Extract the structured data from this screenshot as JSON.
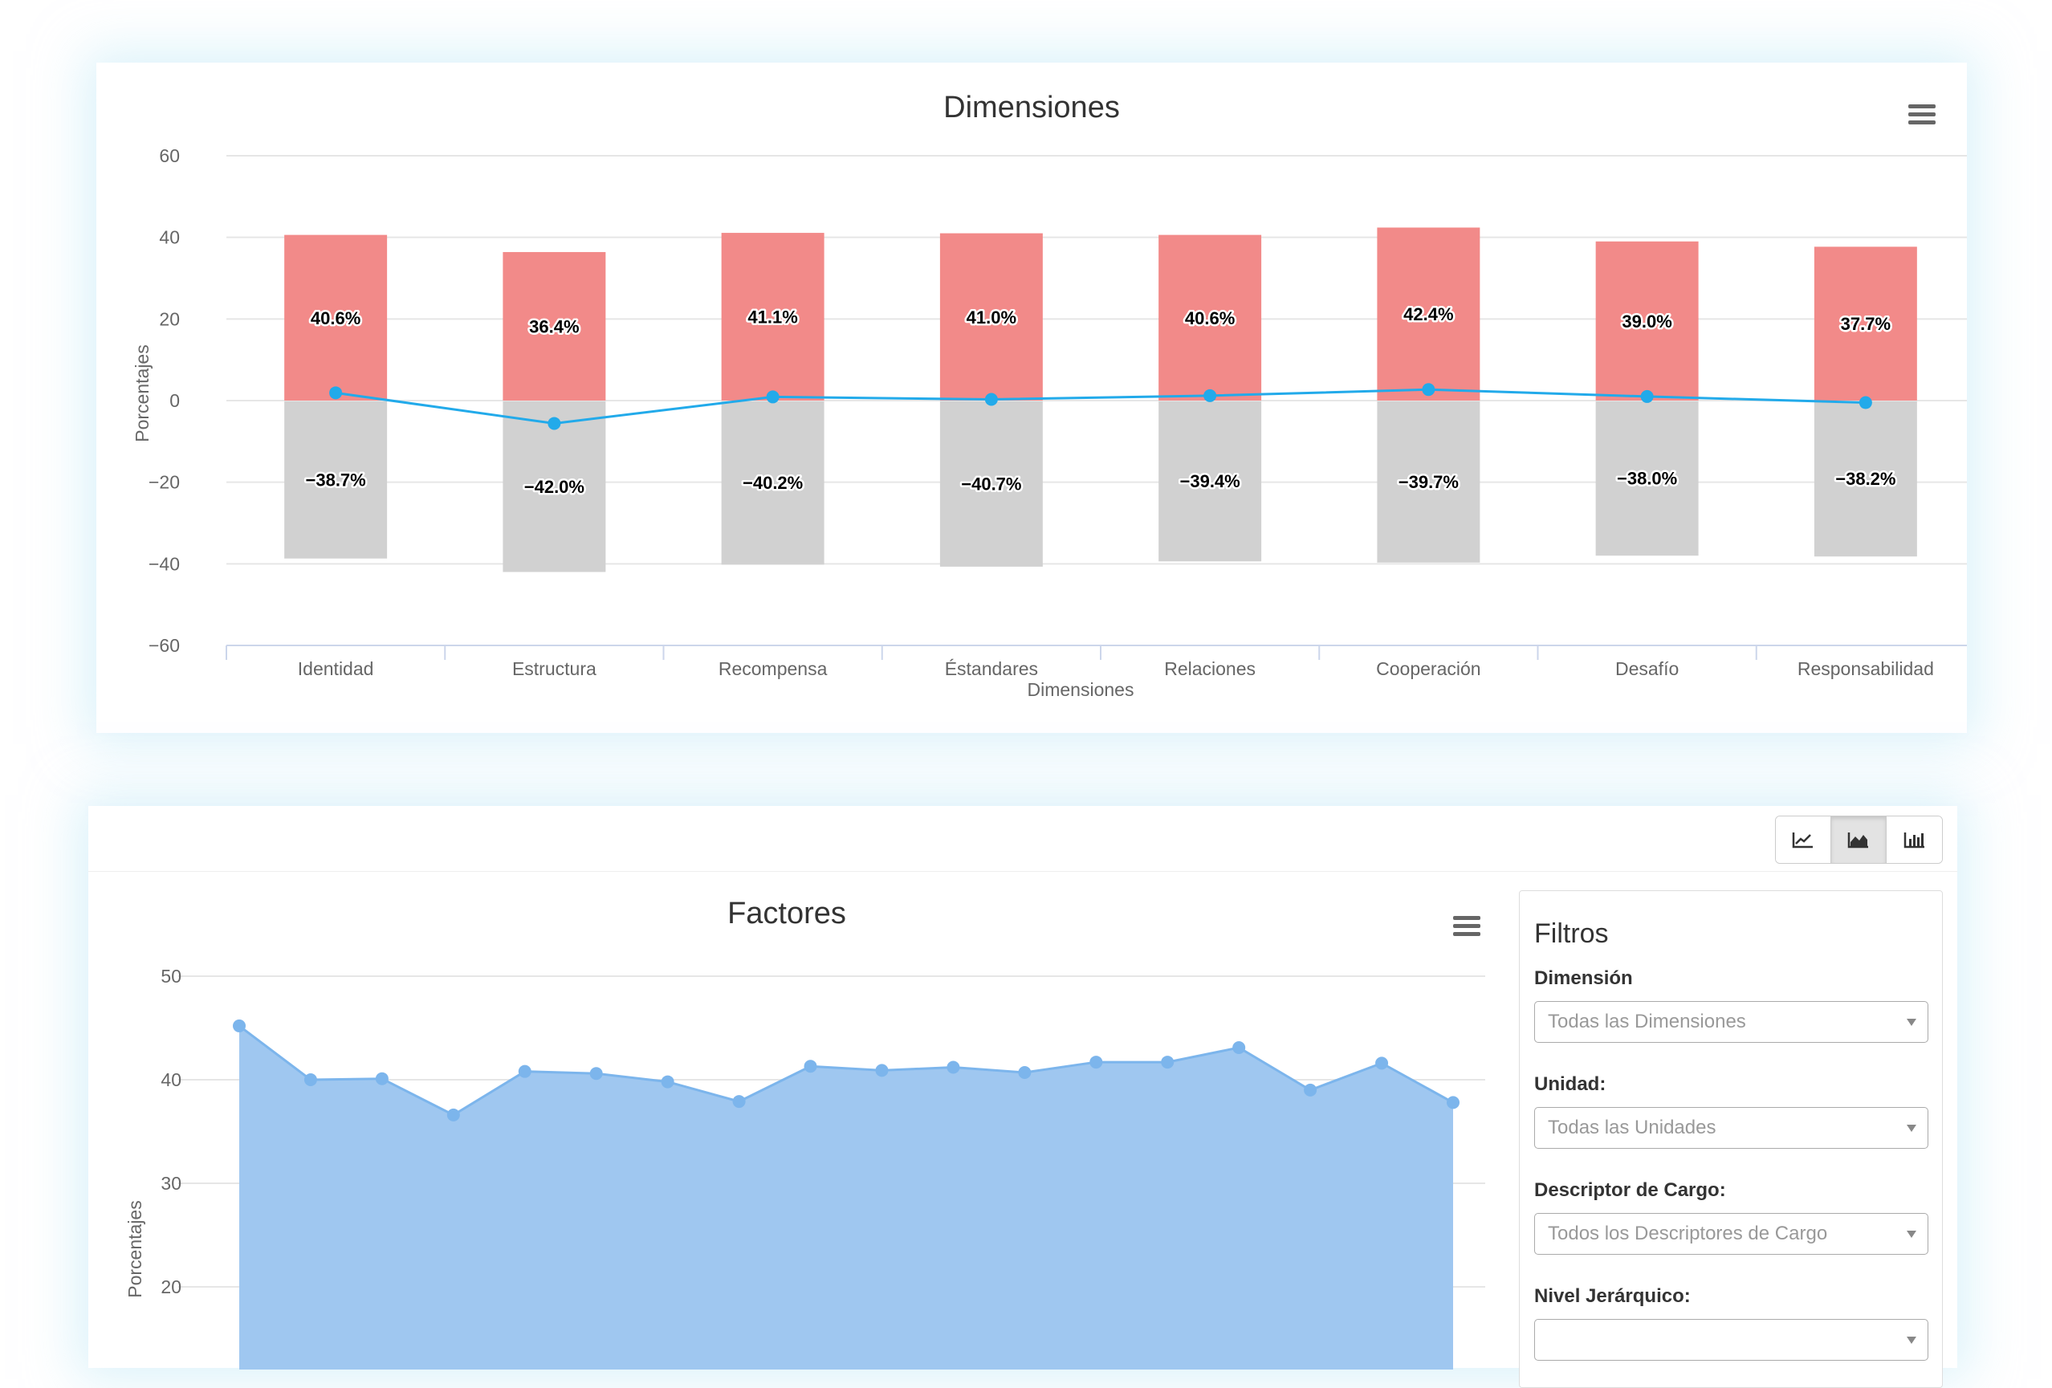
{
  "top_chart": {
    "menu_icon": "hamburger-menu-icon",
    "colors": {
      "positive": "#f28a89",
      "negative": "#d1d1d1",
      "line": "#22aaea"
    },
    "chart_data": {
      "type": "bar",
      "title": "Dimensiones",
      "xlabel": "Dimensiones",
      "ylabel": "Porcentajes",
      "ylim": [
        -60,
        60
      ],
      "yticks": [
        "60",
        "40",
        "20",
        "0",
        "−20",
        "−40",
        "−60"
      ],
      "ytick_values": [
        60,
        40,
        20,
        0,
        -20,
        -40,
        -60
      ],
      "categories": [
        "Identidad",
        "Estructura",
        "Recompensa",
        "Éstandares",
        "Relaciones",
        "Cooperación",
        "Desafío",
        "Responsabilidad"
      ],
      "stacked": true,
      "grid": true,
      "series": [
        {
          "type": "bar",
          "values": [
            40.6,
            36.4,
            41.1,
            41.0,
            40.6,
            42.4,
            39.0,
            37.7
          ],
          "labels": [
            "40.6%",
            "36.4%",
            "41.1%",
            "41.0%",
            "40.6%",
            "42.4%",
            "39.0%",
            "37.7%"
          ]
        },
        {
          "type": "bar",
          "values": [
            -38.7,
            -42.0,
            -40.2,
            -40.7,
            -39.4,
            -39.7,
            -38.0,
            -38.2
          ],
          "labels": [
            "−38.7%",
            "−42.0%",
            "−40.2%",
            "−40.7%",
            "−39.4%",
            "−39.7%",
            "−38.0%",
            "−38.2%"
          ]
        },
        {
          "type": "line",
          "values": [
            1.9,
            -5.6,
            0.9,
            0.3,
            1.2,
            2.7,
            1.0,
            -0.5
          ]
        }
      ]
    }
  },
  "bottom_panel": {
    "toolbar": {
      "buttons": [
        {
          "icon": "line-chart-icon",
          "active": false
        },
        {
          "icon": "area-chart-icon",
          "active": true
        },
        {
          "icon": "bar-chart-icon",
          "active": false
        }
      ]
    },
    "menu_icon": "hamburger-menu-icon",
    "colors": {
      "area_fill": "#9fc7f0",
      "area_line": "#7cb5ec"
    },
    "chart_data": {
      "type": "area",
      "title": "Factores",
      "ylabel": "Porcentajes",
      "yticks": [
        "50",
        "40",
        "30",
        "20"
      ],
      "ytick_values": [
        50,
        40,
        30,
        20
      ],
      "ylim": [
        0,
        50
      ],
      "grid": true,
      "values": [
        45.2,
        40.0,
        40.1,
        36.6,
        40.8,
        40.6,
        39.8,
        37.9,
        41.3,
        40.9,
        41.2,
        40.7,
        41.7,
        41.7,
        43.1,
        39.0,
        41.6,
        37.8
      ]
    },
    "filters": {
      "title": "Filtros",
      "items": [
        {
          "label": "Dimensión",
          "placeholder": "Todas las Dimensiones"
        },
        {
          "label": "Unidad:",
          "placeholder": "Todas las Unidades"
        },
        {
          "label": "Descriptor de Cargo:",
          "placeholder": "Todos los Descriptores de Cargo"
        },
        {
          "label": "Nivel Jerárquico:",
          "placeholder": ""
        }
      ]
    }
  }
}
